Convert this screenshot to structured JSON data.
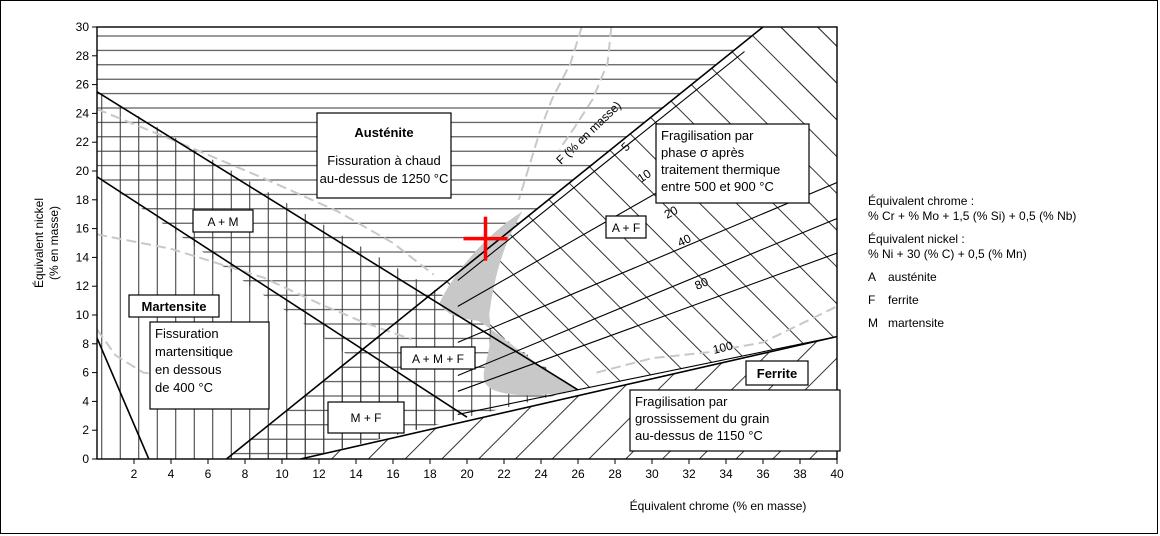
{
  "chart_data": {
    "type": "diagram",
    "xlabel": "Équivalent chrome (% en masse)",
    "ylabel": "Équivalent nickel (% en masse)",
    "xlim": [
      0,
      40
    ],
    "ylim": [
      0,
      30
    ],
    "xticks": [
      2,
      4,
      6,
      8,
      10,
      12,
      14,
      16,
      18,
      20,
      22,
      24,
      26,
      28,
      30,
      32,
      34,
      36,
      38,
      40
    ],
    "yticks": [
      0,
      2,
      4,
      6,
      8,
      10,
      12,
      14,
      16,
      18,
      20,
      22,
      24,
      26,
      28,
      30
    ],
    "lines": {
      "austenite_boundary": [
        [
          7,
          0
        ],
        [
          36,
          30
        ]
      ],
      "martensite_upper": [
        [
          0,
          25.5
        ],
        [
          26,
          4.8
        ]
      ],
      "martensite_lower": [
        [
          0,
          19.6
        ],
        [
          20,
          2.9
        ]
      ],
      "martensite_left": [
        [
          0,
          8.4
        ],
        [
          2.8,
          0
        ]
      ],
      "ferrite_boundary": [
        [
          11,
          0
        ],
        [
          40,
          8.5
        ]
      ]
    },
    "ferrite_lines": [
      {
        "label": "5",
        "points": [
          [
            19.5,
            12.4
          ],
          [
            35,
            28.3
          ]
        ]
      },
      {
        "label": "10",
        "points": [
          [
            19.5,
            10.6
          ],
          [
            36,
            22.7
          ]
        ]
      },
      {
        "label": "20",
        "points": [
          [
            19.5,
            8.1
          ],
          [
            40,
            19.2
          ]
        ]
      },
      {
        "label": "40",
        "points": [
          [
            19.5,
            5.8
          ],
          [
            40,
            16.7
          ]
        ]
      },
      {
        "label": "80",
        "points": [
          [
            19.5,
            4.7
          ],
          [
            40,
            14.3
          ]
        ]
      },
      {
        "label": "100",
        "points": [
          [
            19.5,
            3.1
          ],
          [
            40,
            8.5
          ]
        ]
      }
    ],
    "marker": {
      "x": 21,
      "y": 15.3,
      "color": "#ff0000"
    },
    "region_labels": {
      "austenite": "Austénite",
      "hot_cracking": "Fissuration à chaud\nau-dessus de 1250 °C",
      "sigma": "Fragilisation par\nphase σ après\ntraitement thermique\nentre 500 et 900 °C",
      "a_m": "A + M",
      "a_f": "A + F",
      "a_m_f": "A + M + F",
      "m_f": "M + F",
      "martensite": "Martensite",
      "martensitic_cracking": "Fissuration\nmartensitique\nen dessous\nde 400 °C",
      "ferrite": "Ferrite",
      "grain_growth": "Fragilisation par\ngrossissement du grain\nau-dessus de 1150 °C",
      "ferrite_percent_axis": "F (% en masse)"
    },
    "legend": {
      "chrome_title": "Équivalent chrome :",
      "chrome_formula": "% Cr + % Mo + 1,5 (% Si) + 0,5 (% Nb)",
      "nickel_title": "Équivalent nickel :",
      "nickel_formula": "% Ni + 30 (% C) + 0,5 (% Mn)",
      "entries": [
        {
          "symbol": "A",
          "text": "austénite"
        },
        {
          "symbol": "F",
          "text": "ferrite"
        },
        {
          "symbol": "M",
          "text": "martensite"
        }
      ]
    },
    "colors": {
      "lines": "#000000",
      "dashed": "#c8c8c8",
      "hatch": "#333333",
      "sigma_fill": "#c8c8c8",
      "marker": "#ff0000"
    }
  }
}
